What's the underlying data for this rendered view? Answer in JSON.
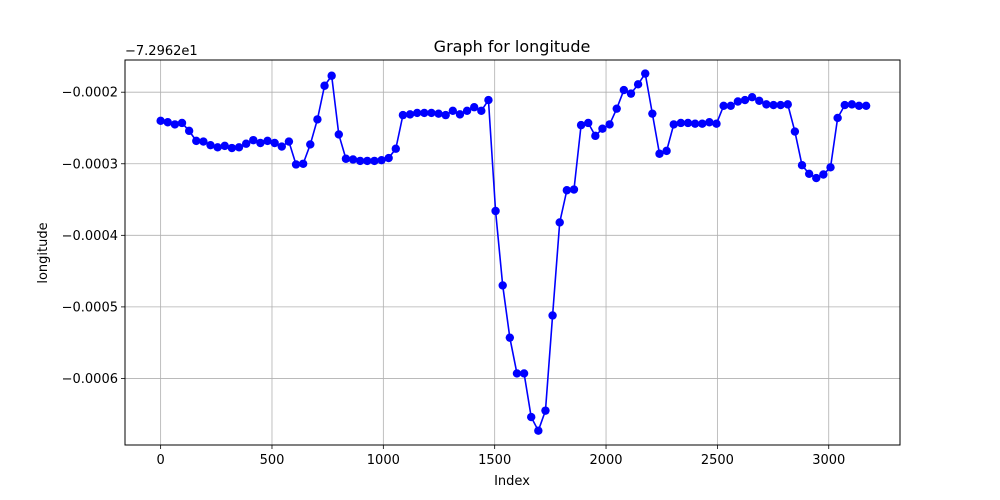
{
  "chart_data": {
    "type": "line",
    "title": "Graph for longitude",
    "xlabel": "Index",
    "ylabel": "longitude",
    "offset_text": "−7.2962e1",
    "offset": -72.962,
    "xlim": [
      -160,
      3320
    ],
    "ylim": [
      -0.000693,
      -0.000155
    ],
    "grid": true,
    "x_ticks": [
      0,
      500,
      1000,
      1500,
      2000,
      2500,
      3000
    ],
    "x_tick_labels": [
      "0",
      "500",
      "1000",
      "1500",
      "2000",
      "2500",
      "3000"
    ],
    "y_ticks": [
      -0.0006,
      -0.0005,
      -0.0004,
      -0.0003,
      -0.0002
    ],
    "y_tick_labels": [
      "−0.0006",
      "−0.0005",
      "−0.0004",
      "−0.0003",
      "−0.0002"
    ],
    "series": [
      {
        "color": "#0000ff",
        "marker": "circle",
        "x": [
          0,
          32,
          64,
          96,
          128,
          160,
          192,
          224,
          256,
          288,
          320,
          352,
          384,
          416,
          448,
          480,
          512,
          544,
          576,
          608,
          640,
          672,
          704,
          736,
          768,
          800,
          832,
          864,
          896,
          928,
          960,
          992,
          1024,
          1056,
          1088,
          1120,
          1152,
          1184,
          1216,
          1248,
          1280,
          1312,
          1344,
          1376,
          1408,
          1440,
          1472,
          1504,
          1536,
          1568,
          1600,
          1632,
          1664,
          1696,
          1728,
          1760,
          1792,
          1824,
          1856,
          1888,
          1920,
          1952,
          1984,
          2016,
          2048,
          2080,
          2112,
          2144,
          2176,
          2208,
          2240,
          2272,
          2304,
          2336,
          2368,
          2400,
          2432,
          2464,
          2496,
          2528,
          2560,
          2592,
          2624,
          2656,
          2688,
          2720,
          2752,
          2784,
          2816,
          2848,
          2880,
          2912,
          2944,
          2976,
          3008,
          3040,
          3072,
          3104,
          3136,
          3168
        ],
        "y": [
          -0.00024,
          -0.000242,
          -0.000245,
          -0.000243,
          -0.000254,
          -0.000268,
          -0.000269,
          -0.000274,
          -0.000277,
          -0.000275,
          -0.000278,
          -0.000277,
          -0.000272,
          -0.000267,
          -0.000271,
          -0.000268,
          -0.000271,
          -0.000276,
          -0.000269,
          -0.000301,
          -0.0003,
          -0.000273,
          -0.000238,
          -0.000191,
          -0.000177,
          -0.000259,
          -0.000293,
          -0.000294,
          -0.000296,
          -0.000296,
          -0.000296,
          -0.000295,
          -0.000292,
          -0.000279,
          -0.000232,
          -0.000231,
          -0.000229,
          -0.000229,
          -0.000229,
          -0.00023,
          -0.000232,
          -0.000226,
          -0.000231,
          -0.000226,
          -0.000221,
          -0.000226,
          -0.000211,
          -0.000366,
          -0.00047,
          -0.000543,
          -0.000593,
          -0.000593,
          -0.000654,
          -0.000673,
          -0.000645,
          -0.000512,
          -0.000382,
          -0.000337,
          -0.000336,
          -0.000246,
          -0.000243,
          -0.000261,
          -0.000251,
          -0.000245,
          -0.000223,
          -0.000197,
          -0.000202,
          -0.000189,
          -0.000174,
          -0.00023,
          -0.000286,
          -0.000282,
          -0.000245,
          -0.000243,
          -0.000243,
          -0.000244,
          -0.000244,
          -0.000242,
          -0.000244,
          -0.000219,
          -0.000219,
          -0.000213,
          -0.000211,
          -0.000207,
          -0.000212,
          -0.000217,
          -0.000218,
          -0.000218,
          -0.000217,
          -0.000255,
          -0.000302,
          -0.000314,
          -0.00032,
          -0.000315,
          -0.000305,
          -0.000236,
          -0.000218,
          -0.000217,
          -0.000219,
          -0.000219
        ]
      }
    ]
  }
}
